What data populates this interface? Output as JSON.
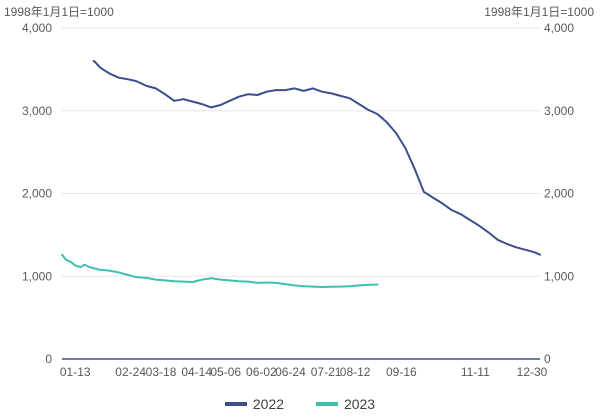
{
  "chart_data": {
    "type": "line",
    "unit_label_left": "1998年1月1日=1000",
    "unit_label_right": "1998年1月1日=1000",
    "ylim": [
      0,
      4000
    ],
    "y_ticks": [
      "0",
      "1,000",
      "2,000",
      "3,000",
      "4,000"
    ],
    "x_ticks": [
      "01-13",
      "02-24",
      "03-18",
      "04-14",
      "05-06",
      "06-02",
      "06-24",
      "07-21",
      "08-12",
      "09-16",
      "11-11",
      "12-30"
    ],
    "grid": "horizontal",
    "legend_position": "bottom",
    "series": [
      {
        "name": "2022",
        "color": "#3C4E8C",
        "x": [
          "2022-01-27",
          "2022-01-28",
          "2022-02-01",
          "2022-02-08",
          "2022-02-15",
          "2022-02-22",
          "2022-02-28",
          "2022-03-07",
          "2022-03-14",
          "2022-03-21",
          "2022-03-28",
          "2022-04-04",
          "2022-04-11",
          "2022-04-18",
          "2022-04-25",
          "2022-05-02",
          "2022-05-09",
          "2022-05-16",
          "2022-05-23",
          "2022-05-30",
          "2022-06-06",
          "2022-06-13",
          "2022-06-20",
          "2022-06-27",
          "2022-07-04",
          "2022-07-11",
          "2022-07-18",
          "2022-07-25",
          "2022-08-01",
          "2022-08-08",
          "2022-08-15",
          "2022-08-22",
          "2022-08-29",
          "2022-09-05",
          "2022-09-12",
          "2022-09-19",
          "2022-09-26",
          "2022-10-03",
          "2022-10-10",
          "2022-10-17",
          "2022-10-24",
          "2022-10-31",
          "2022-11-07",
          "2022-11-14",
          "2022-11-21",
          "2022-11-28",
          "2022-12-05",
          "2022-12-12",
          "2022-12-19",
          "2022-12-26",
          "2022-12-30"
        ],
        "values": [
          3600,
          3590,
          3520,
          3450,
          3400,
          3380,
          3360,
          3300,
          3270,
          3200,
          3120,
          3140,
          3110,
          3080,
          3040,
          3070,
          3120,
          3170,
          3200,
          3190,
          3230,
          3250,
          3250,
          3270,
          3240,
          3270,
          3230,
          3210,
          3180,
          3150,
          3080,
          3010,
          2960,
          2860,
          2730,
          2550,
          2300,
          2020,
          1950,
          1880,
          1800,
          1750,
          1680,
          1610,
          1530,
          1440,
          1390,
          1350,
          1320,
          1290,
          1260
        ]
      },
      {
        "name": "2023",
        "color": "#3FBFB0",
        "x": [
          "2023-01-03",
          "2023-01-06",
          "2023-01-10",
          "2023-01-13",
          "2023-01-17",
          "2023-01-20",
          "2023-01-24",
          "2023-01-31",
          "2023-02-07",
          "2023-02-14",
          "2023-02-21",
          "2023-02-28",
          "2023-03-07",
          "2023-03-14",
          "2023-03-21",
          "2023-03-28",
          "2023-04-04",
          "2023-04-11",
          "2023-04-18",
          "2023-04-25",
          "2023-05-02",
          "2023-05-09",
          "2023-05-16",
          "2023-05-23",
          "2023-05-30",
          "2023-06-06",
          "2023-06-13",
          "2023-06-20",
          "2023-06-27",
          "2023-07-04",
          "2023-07-11",
          "2023-07-18",
          "2023-07-25",
          "2023-08-01",
          "2023-08-08",
          "2023-08-15",
          "2023-08-22",
          "2023-08-29"
        ],
        "values": [
          1260,
          1200,
          1170,
          1130,
          1110,
          1140,
          1110,
          1080,
          1070,
          1050,
          1020,
          990,
          980,
          960,
          950,
          940,
          935,
          930,
          960,
          975,
          960,
          950,
          940,
          935,
          920,
          925,
          920,
          905,
          890,
          880,
          875,
          870,
          872,
          875,
          880,
          890,
          895,
          900
        ]
      }
    ]
  }
}
